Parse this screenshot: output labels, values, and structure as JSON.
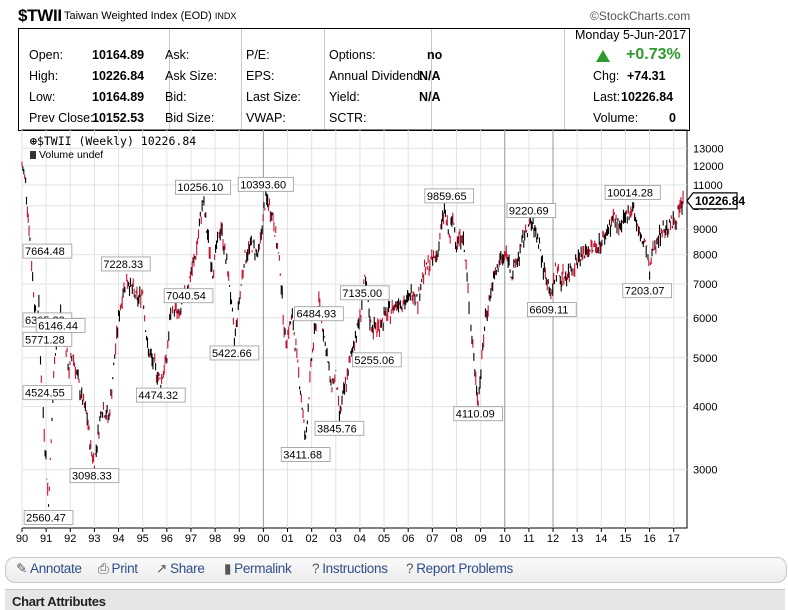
{
  "header": {
    "symbol": "$TWII",
    "name": "Taiwan Weighted Index (EOD)",
    "exchange": "INDX",
    "brand": "©StockCharts.com"
  },
  "quote": {
    "open_label": "Open:",
    "open": "10164.89",
    "high_label": "High:",
    "high": "10226.84",
    "low_label": "Low:",
    "low": "10164.89",
    "prev_label": "Prev Close:",
    "prev": "10152.53",
    "ask_label": "Ask:",
    "ask": "",
    "asksize_label": "Ask Size:",
    "asksize": "",
    "bid_label": "Bid:",
    "bid": "",
    "bidsize_label": "Bid Size:",
    "bidsize": "",
    "pe_label": "P/E:",
    "eps_label": "EPS:",
    "lastsize_label": "Last Size:",
    "vwap_label": "VWAP:",
    "options_label": "Options:",
    "options": "no",
    "dividend_label": "Annual Dividend:",
    "dividend": "N/A",
    "yield_label": "Yield:",
    "yield": "N/A",
    "sctr_label": "SCTR:",
    "date": "Monday  5-Jun-2017",
    "pct": "+0.73%",
    "chg_label": "Chg:",
    "chg": "+74.31",
    "last_label": "Last:",
    "last": "10226.84",
    "volume_label": "Volume:",
    "volume": "0"
  },
  "legend": {
    "line1": "$TWII (Weekly) 10226.84",
    "line2": "Volume undef"
  },
  "colors": {
    "up_bar": "#000000",
    "down_bar": "#c8102e",
    "up_text": "#2e9a2e",
    "link": "#2f4f8a"
  },
  "toolbar": {
    "annotate": "Annotate",
    "annotate_icon": "pencil-icon",
    "print": "Print",
    "print_icon": "printer-icon",
    "share": "Share",
    "share_icon": "share-icon",
    "permalink": "Permalink",
    "permalink_icon": "bookmark-icon",
    "instructions": "Instructions",
    "instructions_icon": "help-icon",
    "report": "Report Problems",
    "report_icon": "help-icon"
  },
  "chart_attributes_label": "Chart Attributes",
  "chart_data": {
    "type": "line",
    "style": "weekly price bars",
    "title": "$TWII (Weekly) 10226.84",
    "y_scale": "log",
    "ylim": [
      2300,
      13500
    ],
    "xlim": [
      1990.0,
      2017.55
    ],
    "grid": true,
    "yticks": [
      3000,
      4000,
      5000,
      6000,
      7000,
      8000,
      9000,
      10000,
      11000,
      12000,
      13000
    ],
    "xtick_labels": [
      "90",
      "91",
      "92",
      "93",
      "94",
      "95",
      "96",
      "97",
      "98",
      "99",
      "00",
      "01",
      "02",
      "03",
      "04",
      "05",
      "06",
      "07",
      "08",
      "09",
      "10",
      "11",
      "12",
      "13",
      "14",
      "15",
      "16",
      "17"
    ],
    "x": [
      1990.0,
      1990.15,
      1990.4,
      1990.6,
      1990.7,
      1990.8,
      1990.92,
      1991.1,
      1991.35,
      1991.6,
      1991.75,
      1991.95,
      1992.1,
      1992.4,
      1992.7,
      1992.85,
      1993.0,
      1993.3,
      1993.6,
      1994.0,
      1994.3,
      1994.8,
      1995.0,
      1995.2,
      1995.5,
      1995.75,
      1996.0,
      1996.2,
      1996.5,
      1996.9,
      1997.2,
      1997.5,
      1997.65,
      1997.9,
      1998.1,
      1998.25,
      1998.6,
      1998.8,
      1999.0,
      1999.2,
      1999.5,
      1999.8,
      2000.1,
      2000.4,
      2000.7,
      2000.9,
      2001.2,
      2001.5,
      2001.75,
      2002.0,
      2002.3,
      2002.6,
      2002.8,
      2003.0,
      2003.15,
      2003.4,
      2003.7,
      2004.0,
      2004.2,
      2004.45,
      2004.7,
      2005.0,
      2005.3,
      2005.6,
      2005.9,
      2006.2,
      2006.4,
      2006.6,
      2006.9,
      2007.2,
      2007.5,
      2007.7,
      2007.85,
      2008.0,
      2008.25,
      2008.4,
      2008.6,
      2008.8,
      2008.9,
      2009.2,
      2009.5,
      2009.8,
      2010.1,
      2010.3,
      2010.6,
      2010.9,
      2011.1,
      2011.4,
      2011.6,
      2011.8,
      2011.95,
      2012.1,
      2012.3,
      2012.6,
      2012.9,
      2013.2,
      2013.5,
      2013.8,
      2014.1,
      2014.5,
      2014.8,
      2015.0,
      2015.3,
      2015.5,
      2015.7,
      2015.9,
      2016.0,
      2016.1,
      2016.3,
      2016.6,
      2016.9,
      2017.1,
      2017.3,
      2017.43
    ],
    "y": [
      12000,
      11200,
      7664.48,
      5771.28,
      6305.22,
      4524.55,
      3600,
      2560.47,
      5000,
      6146.44,
      5500,
      4700,
      5100,
      4300,
      3800,
      3300,
      3098.33,
      4000,
      3800,
      6000,
      7228.33,
      6500,
      6800,
      5200,
      4800,
      4474.32,
      5000,
      6500,
      6000,
      7040.54,
      8000,
      10256.1,
      9000,
      7400,
      8500,
      9100,
      7000,
      5422.66,
      6500,
      7800,
      8400,
      8000,
      10393.6,
      9500,
      7500,
      5400,
      6000,
      4500,
      3411.68,
      5000,
      6484.93,
      5200,
      4400,
      4600,
      3845.76,
      4400,
      5255.06,
      6000,
      7135.0,
      5800,
      5700,
      6000,
      6200,
      6500,
      6400,
      6800,
      6500,
      7300,
      7700,
      8000,
      9859.65,
      8600,
      9400,
      8500,
      8800,
      7500,
      5800,
      4500,
      4110.09,
      6000,
      7000,
      7800,
      8000,
      7300,
      8000,
      9000,
      9220.69,
      8600,
      7500,
      7000,
      6609.11,
      7500,
      7200,
      7300,
      7700,
      8000,
      8200,
      8300,
      8600,
      9500,
      9000,
      9400,
      10014.28,
      9000,
      8500,
      8200,
      7203.07,
      8100,
      8600,
      9000,
      9200,
      9400,
      10000,
      10226.84
    ],
    "annotations": [
      {
        "label": "7664.48",
        "x": 1990.4,
        "y": 7664.48
      },
      {
        "label": "6305.22",
        "x": 1990.7,
        "y": 6305.22
      },
      {
        "label": "5771.28",
        "x": 1990.6,
        "y": 5771.28
      },
      {
        "label": "6146.44",
        "x": 1991.6,
        "y": 6146.44
      },
      {
        "label": "4524.55",
        "x": 1990.8,
        "y": 4524.55
      },
      {
        "label": "2560.47",
        "x": 1991.1,
        "y": 2560.47
      },
      {
        "label": "3098.33",
        "x": 1993.0,
        "y": 3098.33
      },
      {
        "label": "7228.33",
        "x": 1994.3,
        "y": 7228.33
      },
      {
        "label": "4474.32",
        "x": 1995.75,
        "y": 4474.32
      },
      {
        "label": "10256.10",
        "x": 1997.5,
        "y": 10256.1
      },
      {
        "label": "7040.54",
        "x": 1996.9,
        "y": 7040.54
      },
      {
        "label": "5422.66",
        "x": 1998.8,
        "y": 5422.66
      },
      {
        "label": "10393.60",
        "x": 2000.1,
        "y": 10393.6
      },
      {
        "label": "6484.93",
        "x": 2002.3,
        "y": 6484.93
      },
      {
        "label": "3411.68",
        "x": 2001.75,
        "y": 3411.68
      },
      {
        "label": "3845.76",
        "x": 2003.15,
        "y": 3845.76
      },
      {
        "label": "7135.00",
        "x": 2004.2,
        "y": 7135.0
      },
      {
        "label": "5255.06",
        "x": 2004.7,
        "y": 5255.06
      },
      {
        "label": "9859.65",
        "x": 2007.7,
        "y": 9859.65
      },
      {
        "label": "4110.09",
        "x": 2008.9,
        "y": 4110.09
      },
      {
        "label": "9220.69",
        "x": 2011.1,
        "y": 9220.69
      },
      {
        "label": "6609.11",
        "x": 2011.95,
        "y": 6609.11
      },
      {
        "label": "10014.28",
        "x": 2015.3,
        "y": 10014.28
      },
      {
        "label": "7203.07",
        "x": 2015.9,
        "y": 7203.07
      }
    ],
    "last_price_label": "10226.84"
  }
}
